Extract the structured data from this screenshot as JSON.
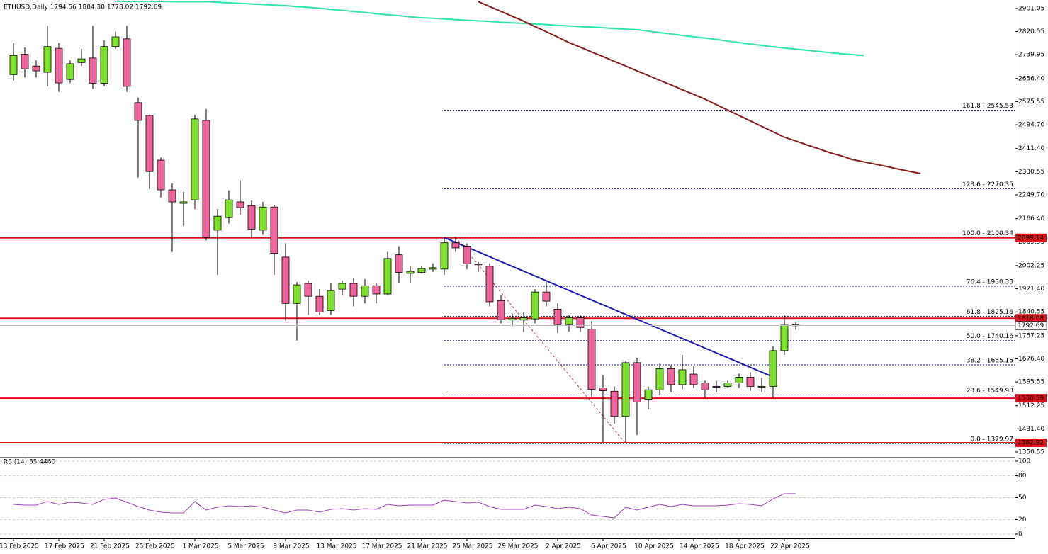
{
  "chart_data": [
    {
      "type": "candlestick",
      "title": "ETHUSD,Daily 1794.56 1804.30 1778.02 1792.69",
      "categories": [
        "13 Feb 2025",
        null,
        null,
        null,
        "17 Feb 2025",
        null,
        null,
        null,
        "21 Feb 2025",
        null,
        null,
        null,
        "25 Feb 2025",
        null,
        null,
        null,
        "1 Mar 2025",
        null,
        null,
        null,
        "5 Mar 2025",
        null,
        null,
        null,
        "9 Mar 2025",
        null,
        null,
        null,
        "13 Mar 2025",
        null,
        null,
        null,
        "17 Mar 2025",
        null,
        null,
        null,
        "21 Mar 2025",
        null,
        null,
        null,
        "25 Mar 2025",
        null,
        null,
        null,
        "29 Mar 2025",
        null,
        null,
        null,
        "2 Apr 2025",
        null,
        null,
        null,
        "6 Apr 2025",
        null,
        null,
        null,
        "10 Apr 2025",
        null,
        null,
        null,
        "14 Apr 2025",
        null,
        null,
        null,
        "18 Apr 2025",
        null,
        null,
        null,
        "22 Apr 2025",
        null,
        null,
        null,
        null,
        null,
        null,
        null,
        null,
        null,
        null,
        null,
        null
      ],
      "open": [
        2670,
        2741,
        2700,
        2678,
        2762,
        2653,
        2712,
        2728,
        2640,
        2768,
        2795,
        2572,
        2527,
        2371,
        2267,
        2220,
        2232,
        2510,
        2126,
        2170,
        2225,
        2212,
        2126,
        2207,
        2032,
        1870,
        1940,
        1895,
        1845,
        1920,
        1940,
        1895,
        1932,
        1903,
        2040,
        1975,
        1978,
        1990,
        1990,
        2082,
        2070,
        2008,
        2000,
        1880,
        1812,
        1812,
        1816,
        1910,
        1850,
        1796,
        1820,
        1780,
        1575,
        1563,
        1475,
        1663,
        1535,
        1568,
        1642,
        1586,
        1623,
        1592,
        1580,
        1580,
        1592,
        1612,
        1578,
        1580,
        1705,
        1794.56,
        null,
        null,
        null,
        null,
        null,
        null,
        null,
        null,
        null,
        null,
        null
      ],
      "high": [
        2780,
        2765,
        2720,
        2840,
        2780,
        2720,
        2760,
        2840,
        2790,
        2820,
        2840,
        2590,
        2530,
        2380,
        2290,
        2260,
        2530,
        2550,
        2200,
        2265,
        2300,
        2230,
        2225,
        2215,
        2080,
        1945,
        1950,
        1920,
        1940,
        1950,
        1960,
        1955,
        1940,
        2050,
        2070,
        2000,
        2000,
        2010,
        2100,
        2104,
        2080,
        2015,
        2010,
        1900,
        1835,
        1840,
        1920,
        1945,
        1870,
        1830,
        1830,
        1808,
        1620,
        1580,
        1670,
        1680,
        1580,
        1660,
        1655,
        1690,
        1650,
        1600,
        1600,
        1600,
        1625,
        1630,
        1610,
        1720,
        1830,
        1804.3,
        null,
        null,
        null,
        null,
        null,
        null,
        null,
        null,
        null,
        null,
        null
      ],
      "low": [
        2650,
        2660,
        2660,
        2630,
        2610,
        2640,
        2700,
        2620,
        2630,
        2760,
        2610,
        2310,
        2270,
        2240,
        2050,
        2140,
        2200,
        2090,
        1970,
        2150,
        2180,
        2100,
        2110,
        1970,
        1810,
        1740,
        1830,
        1830,
        1830,
        1900,
        1860,
        1870,
        1870,
        1900,
        1940,
        1940,
        1975,
        1980,
        1970,
        2050,
        1990,
        1980,
        1860,
        1800,
        1790,
        1770,
        1800,
        1860,
        1767,
        1772,
        1770,
        1545,
        1385,
        1450,
        1385,
        1410,
        1500,
        1550,
        1560,
        1570,
        1575,
        1540,
        1560,
        1575,
        1575,
        1565,
        1560,
        1540,
        1690,
        1778.02,
        null,
        null,
        null,
        null,
        null,
        null,
        null,
        null,
        null,
        null,
        null
      ],
      "close": [
        2737,
        2690,
        2683,
        2768,
        2641,
        2708,
        2725,
        2640,
        2768,
        2802,
        2629,
        2510,
        2331,
        2267,
        2225,
        2225,
        2515,
        2100,
        2175,
        2232,
        2205,
        2130,
        2207,
        2045,
        1870,
        1935,
        1895,
        1840,
        1915,
        1940,
        1895,
        1932,
        1903,
        2027,
        1978,
        1982,
        1992,
        1995,
        2082,
        2064,
        2008,
        2005,
        1876,
        1813,
        1818,
        1820,
        1910,
        1878,
        1796,
        1820,
        1786,
        1570,
        1565,
        1475,
        1663,
        1525,
        1568,
        1642,
        1586,
        1638,
        1586,
        1568,
        1578,
        1592,
        1612,
        1580,
        1580,
        1705,
        1794,
        1792.69,
        null,
        null,
        null,
        null,
        null,
        null,
        null,
        null,
        null,
        null,
        null
      ],
      "up_color": "#7fe12e",
      "down_color": "#f0649e",
      "ylim": [
        1333.3,
        2930.8
      ],
      "yticks": [
        2901.05,
        2820.55,
        2739.95,
        {
          "value": 2656.4,
          "label": "2656.40"
        },
        2575.55,
        {
          "value": 2494.7,
          "label": "2494.70"
        },
        {
          "value": 2411.4,
          "label": "2411.40"
        },
        2330.55,
        {
          "value": 2249.7,
          "label": "2249.70"
        },
        {
          "value": 2166.4,
          "label": "2166.40"
        },
        2085.55,
        2002.25,
        {
          "value": 1921.4,
          "label": "1921.40"
        },
        1840.55,
        1757.25,
        {
          "value": 1676.4,
          "label": "1676.40"
        },
        1595.55,
        1512.25,
        {
          "value": 1431.4,
          "label": "1431.40"
        },
        1350.55
      ],
      "series": [
        {
          "color": "#2ee6a0",
          "values": [
            null,
            null,
            null,
            null,
            null,
            null,
            null,
            null,
            null,
            2926,
            2926,
            2926,
            2926,
            2926,
            2925,
            2925,
            2925,
            2925,
            2923,
            2921,
            2919,
            2917,
            2915,
            2913,
            2911,
            2908,
            2905,
            2902,
            2898,
            2895,
            2891,
            2887,
            2883,
            2879,
            2876,
            2872,
            2869,
            2867,
            2865,
            2862,
            2860,
            2858,
            2856,
            2853,
            2851,
            2849,
            2847,
            2845,
            2842,
            2840,
            2838,
            2836,
            2834,
            2831,
            2829,
            2827,
            2822,
            2817,
            2812,
            2807,
            2802,
            2798,
            2793,
            2787,
            2782,
            2777,
            2772,
            2767,
            2763,
            2759,
            2755,
            2751,
            2747,
            2743,
            2740,
            2737,
            null,
            null,
            null,
            null,
            null
          ]
        },
        {
          "color": "#8b1c1c",
          "values": [
            null,
            null,
            null,
            null,
            null,
            null,
            null,
            null,
            null,
            null,
            null,
            null,
            null,
            null,
            null,
            null,
            null,
            null,
            null,
            null,
            null,
            null,
            null,
            null,
            null,
            null,
            null,
            null,
            null,
            null,
            null,
            null,
            null,
            null,
            null,
            null,
            null,
            null,
            null,
            null,
            null,
            2925,
            2908,
            2891,
            2874,
            2857,
            2838,
            2820,
            2801,
            2782,
            2766,
            2749,
            2733,
            2716,
            2700,
            2683,
            2667,
            2650,
            2634,
            2617,
            2601,
            2584,
            2565,
            2546,
            2527,
            2508,
            2489,
            2470,
            2451,
            2438,
            2424,
            2411,
            2397,
            2386,
            2373,
            2365,
            2357,
            2349,
            2340,
            2332,
            2324
          ]
        }
      ],
      "hlines": [
        2099.14,
        1818.08,
        1538.59,
        1382.92
      ],
      "hline_color": "#e0101a",
      "fib_levels": [
        {
          "value": 2545.53,
          "label": "161.8 - 2545.53"
        },
        {
          "value": 2270.35,
          "label": "123.6 - 2270.35"
        },
        {
          "value": 2100.34,
          "label": "100.0 - 2100.34"
        },
        {
          "value": 1930.33,
          "label": "76.4 - 1930.33"
        },
        {
          "value": 1825.16,
          "label": "61.8 - 1825.16"
        },
        {
          "value": 1740.16,
          "label": "50.0 - 1740.16"
        },
        {
          "value": 1655.15,
          "label": "38.2 - 1655.15"
        },
        {
          "value": 1549.98,
          "label": "23.6 - 1549.98"
        },
        {
          "value": 1379.97,
          "label": "0.0 - 1379.97"
        }
      ],
      "fib_color": "#1a1aa0",
      "trendline": {
        "color": "#1a1ab4",
        "x": [
          38,
          67
        ],
        "values": [
          2100.34,
          1613
        ]
      },
      "fib_anchor": {
        "color": "#c03030",
        "x": [
          39,
          54
        ],
        "values": [
          2100.34,
          1379.97
        ]
      }
    },
    {
      "type": "rsi",
      "title": "RSI(14) 55.4460",
      "color": "#a040c0",
      "values": [
        40.8,
        39.8,
        39.8,
        44.7,
        40.8,
        43.7,
        42.7,
        40.8,
        47.6,
        49.5,
        43.7,
        37.9,
        33.0,
        30.1,
        29.1,
        29.1,
        44.7,
        33.0,
        36.9,
        38.8,
        37.9,
        38.8,
        36.9,
        33.0,
        29.1,
        33.0,
        33.0,
        30.1,
        34.0,
        35.0,
        33.0,
        35.0,
        34.0,
        40.8,
        38.8,
        39.8,
        39.8,
        39.8,
        46.6,
        44.7,
        42.7,
        43.7,
        37.9,
        34.0,
        34.0,
        34.0,
        39.8,
        37.9,
        35.0,
        36.9,
        35.0,
        26.2,
        24.3,
        22.3,
        36.9,
        33.0,
        36.9,
        40.8,
        37.9,
        40.8,
        38.8,
        38.8,
        38.8,
        39.8,
        41.7,
        40.8,
        38.8,
        48.5,
        55.3,
        55.446,
        null,
        null,
        null,
        null,
        null,
        null,
        null,
        null,
        null,
        null,
        null
      ],
      "ylim": [
        -5.8,
        105.8
      ],
      "yticks": [
        100,
        80,
        50,
        20,
        0
      ]
    }
  ]
}
